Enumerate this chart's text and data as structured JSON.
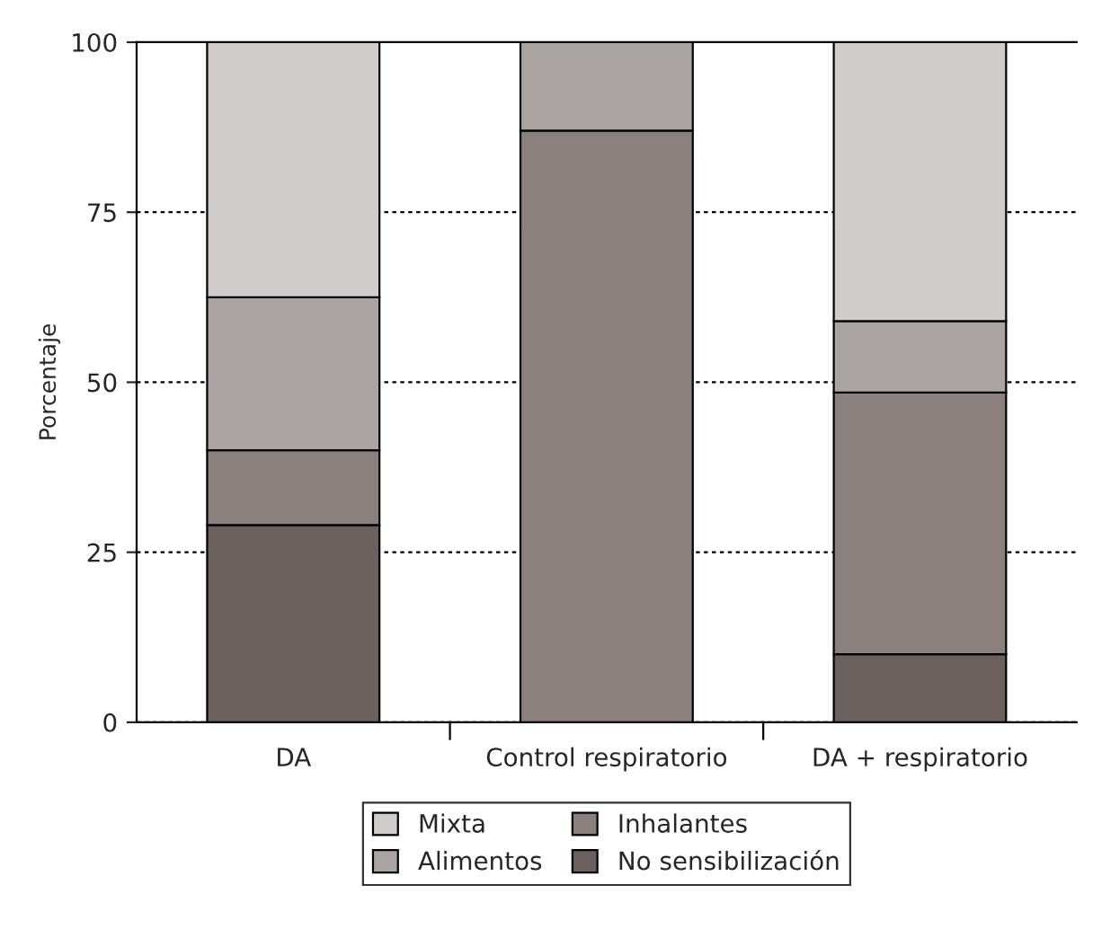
{
  "chart_data": {
    "type": "bar",
    "stacked": true,
    "ylabel": "Porcentaje",
    "categories": [
      "DA",
      "Control respiratorio",
      "DA + respiratorio"
    ],
    "series": [
      {
        "name": "No sensibilización",
        "color": "#6a605d",
        "values": [
          29,
          null,
          10
        ]
      },
      {
        "name": "Inhalantes",
        "color": "#8a817e",
        "values": [
          11,
          87,
          38.5
        ]
      },
      {
        "name": "Alimentos",
        "color": "#aaa5a2",
        "values": [
          22.5,
          13,
          10.5
        ]
      },
      {
        "name": "Mixta",
        "color": "#d0cccb",
        "values": [
          37.5,
          null,
          41
        ]
      }
    ],
    "ylim": [
      0,
      100
    ],
    "yticks": [
      0,
      25,
      50,
      75,
      100
    ],
    "grid": "y",
    "legend": "bottom"
  }
}
